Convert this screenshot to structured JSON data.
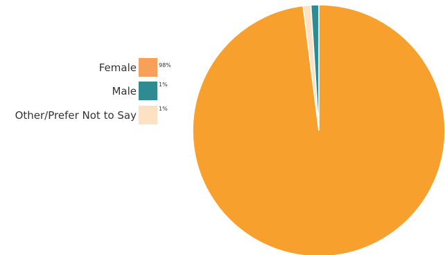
{
  "chart_data": {
    "type": "pie",
    "title": "",
    "slices": [
      {
        "label": "Female",
        "value": 98,
        "display": "98%",
        "color": "#F7A02D",
        "swatch_color": "#F7A05A"
      },
      {
        "label": "Male",
        "value": 1,
        "display": "1%",
        "color": "#2E8B92",
        "swatch_color": "#2E8B92"
      },
      {
        "label": "Other/Prefer Not to Say",
        "value": 1,
        "display": "1%",
        "color": "#FCE1C2",
        "swatch_color": "#FCE1C2"
      }
    ],
    "legend_position": "left"
  }
}
